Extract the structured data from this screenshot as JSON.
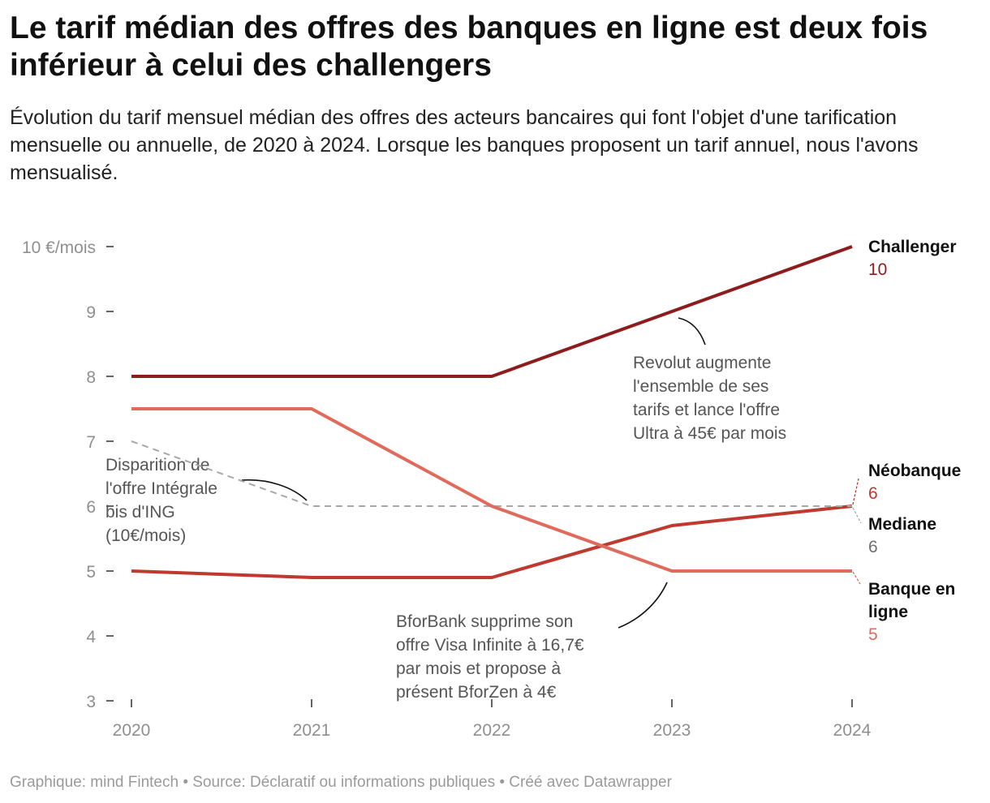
{
  "title": "Le tarif médian des offres des banques en ligne est deux fois inférieur à celui des challengers",
  "subtitle": "Évolution du tarif mensuel médian des offres des acteurs bancaires qui font l'objet d'une tarification mensuelle ou annuelle, de 2020 à 2024. Lorsque les banques proposent un tarif annuel, nous l'avons mensualisé.",
  "footer": "Graphique: mind Fintech • Source: Déclaratif ou informations publiques • Créé avec Datawrapper",
  "chart_data": {
    "type": "line",
    "x": [
      "2020",
      "2021",
      "2022",
      "2023",
      "2024"
    ],
    "ylim": [
      3,
      10
    ],
    "y_ticks": [
      "3",
      "4",
      "5",
      "6",
      "7",
      "8",
      "9",
      "10 €/mois"
    ],
    "y_tick_values": [
      3,
      4,
      5,
      6,
      7,
      8,
      9,
      10
    ],
    "grid": false,
    "series": [
      {
        "name": "Challenger",
        "end_label": "10",
        "color": "#8e1c1c",
        "dashed": false,
        "values": [
          8,
          8,
          8,
          9,
          10
        ]
      },
      {
        "name": "Néobanque",
        "end_label": "6",
        "color": "#c0392f",
        "dashed": false,
        "values": [
          5,
          4.9,
          4.9,
          5.7,
          6
        ]
      },
      {
        "name": "Mediane",
        "end_label": "6",
        "color": "#a8a8a8",
        "dashed": true,
        "values": [
          7,
          6,
          6,
          6,
          6
        ]
      },
      {
        "name": "Banque en ligne",
        "end_label": "5",
        "color": "#e06b5c",
        "dashed": false,
        "values": [
          7.5,
          7.5,
          6,
          5,
          5
        ]
      }
    ],
    "annotations": [
      {
        "lines": [
          "Revolut augmente",
          "l'ensemble de ses",
          "tarifs et lance l'offre",
          "Ultra à 45€ par mois"
        ]
      },
      {
        "lines": [
          "Disparition de",
          "l'offre Intégrale",
          "bis d'ING",
          "(10€/mois)"
        ]
      },
      {
        "lines": [
          "BforBank supprime son",
          "offre Visa Infinite à 16,7€",
          "par mois et propose à",
          "présent BforZen à 4€"
        ]
      }
    ]
  }
}
